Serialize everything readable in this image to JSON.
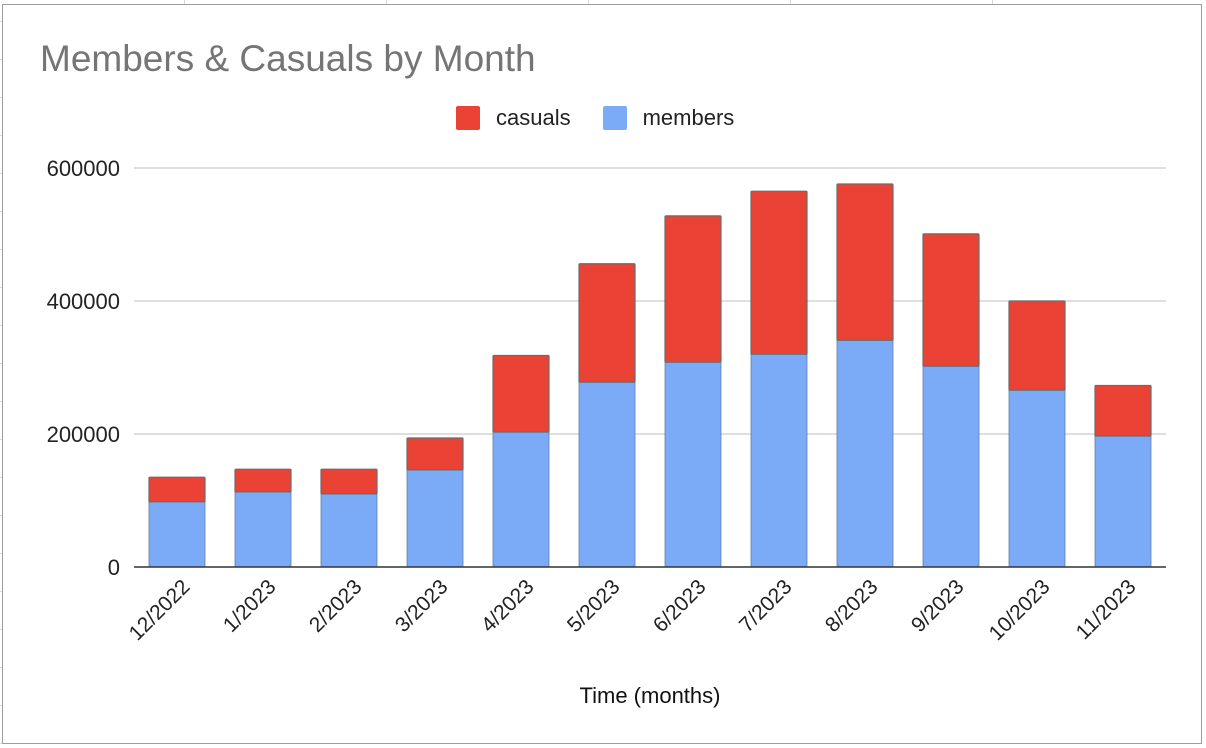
{
  "chart_data": {
    "type": "bar",
    "stacked": true,
    "title": "Members & Casuals by Month",
    "xlabel": "Time (months)",
    "ylabel": "",
    "categories": [
      "12/2022",
      "1/2023",
      "2/2023",
      "3/2023",
      "4/2023",
      "5/2023",
      "6/2023",
      "7/2023",
      "8/2023",
      "9/2023",
      "10/2023",
      "11/2023"
    ],
    "series": [
      {
        "name": "members",
        "color": "#7baaf7",
        "values": [
          98000,
          113000,
          110000,
          146000,
          203000,
          278000,
          308000,
          320000,
          341000,
          302000,
          266000,
          197000
        ]
      },
      {
        "name": "casuals",
        "color": "#ea4335",
        "values": [
          37000,
          34000,
          37000,
          48000,
          115000,
          178000,
          220000,
          245000,
          235000,
          199000,
          134000,
          76000
        ]
      }
    ],
    "legend_order": [
      "casuals",
      "members"
    ],
    "yticks": [
      0,
      200000,
      400000,
      600000
    ],
    "ytick_labels": [
      "0",
      "200000",
      "400000",
      "600000"
    ],
    "ylim": [
      0,
      600000
    ],
    "grid": true,
    "legend_position": "top"
  }
}
